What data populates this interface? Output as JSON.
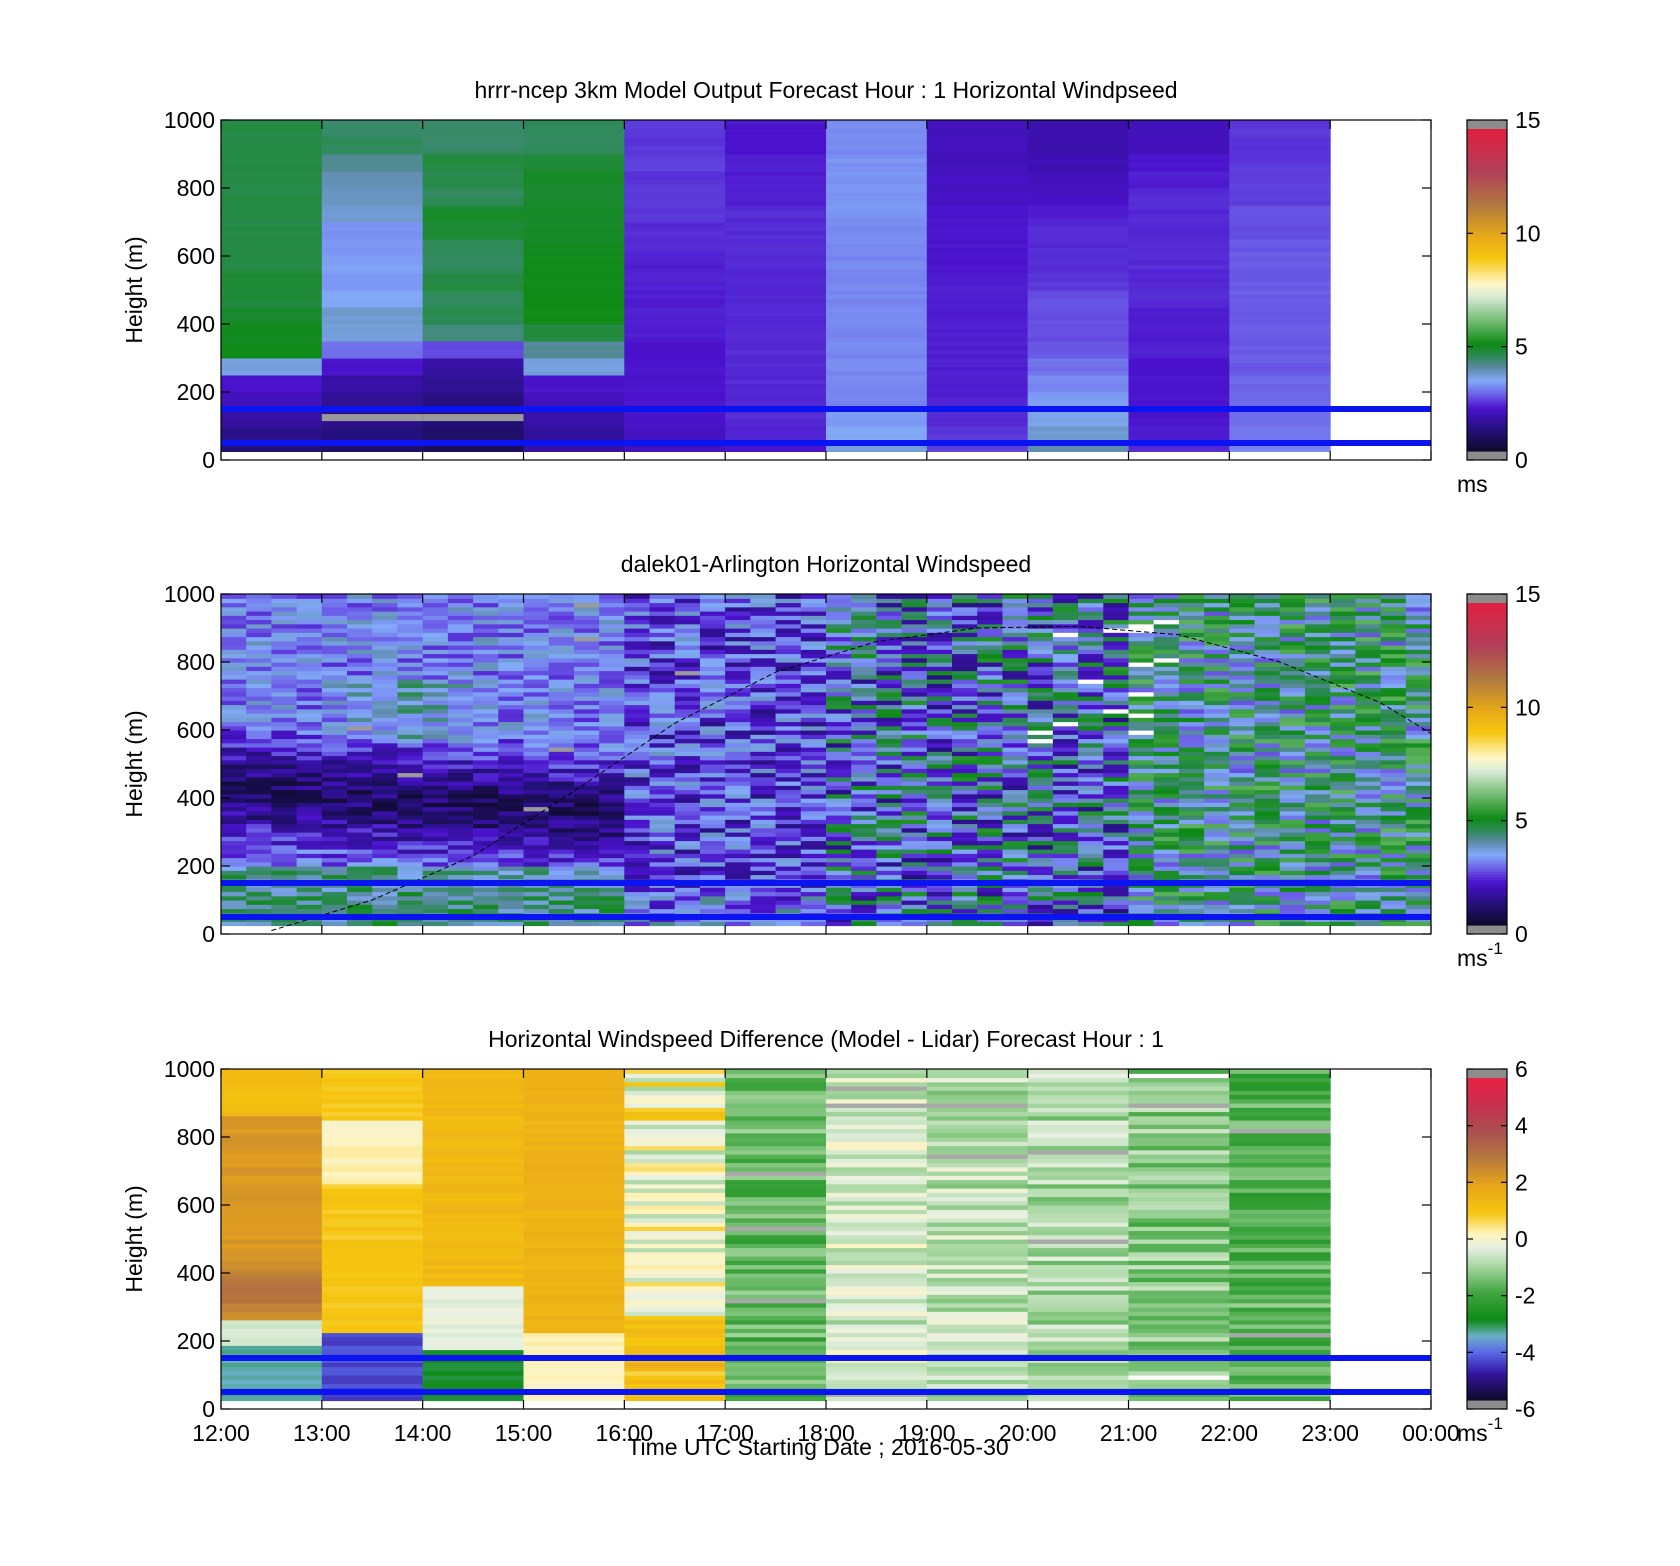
{
  "figure": {
    "xlabel": "Time UTC  Starting Date ; 2016-05-30"
  },
  "chart_data": [
    {
      "type": "heatmap",
      "title": "hrrr-ncep 3km Model Output   Forecast Hour : 1 Horizontal Windpseed",
      "ylabel": "Height (m)",
      "xlim": [
        "12:00",
        "00:00"
      ],
      "ylim": [
        0,
        1000
      ],
      "yticks": [
        0,
        200,
        400,
        600,
        800,
        1000
      ],
      "colorbar": {
        "ticks": [
          0,
          5,
          10,
          15
        ],
        "range": [
          0,
          15
        ],
        "unit": "ms"
      },
      "time_columns": [
        "12:00",
        "13:00",
        "14:00",
        "15:00",
        "16:00",
        "17:00",
        "18:00",
        "19:00",
        "20:00",
        "21:00",
        "22:00"
      ],
      "data_end_time": "23:00",
      "height_levels": [
        30,
        75,
        125,
        175,
        225,
        275,
        325,
        375,
        425,
        475,
        525,
        575,
        625,
        675,
        725,
        775,
        825,
        875,
        925,
        975
      ],
      "windspeed_grid": [
        [
          1.0,
          0.8,
          0.6,
          1.5,
          1.8,
          2.0,
          3.5,
          2.4,
          3.8,
          2.2,
          3.0
        ],
        [
          1.2,
          1.0,
          0.8,
          1.4,
          1.9,
          2.1,
          3.3,
          2.3,
          3.6,
          2.1,
          2.9
        ],
        [
          1.5,
          1.2,
          1.0,
          1.6,
          2.0,
          2.2,
          3.2,
          2.2,
          3.4,
          2.0,
          2.8
        ],
        [
          1.8,
          1.3,
          1.1,
          1.8,
          2.0,
          2.2,
          3.0,
          2.1,
          3.2,
          2.0,
          2.7
        ],
        [
          2.0,
          1.5,
          1.3,
          2.0,
          2.0,
          2.2,
          3.0,
          2.1,
          3.0,
          2.0,
          2.7
        ],
        [
          3.5,
          2.0,
          1.5,
          3.5,
          2.0,
          2.2,
          3.0,
          2.1,
          2.8,
          2.0,
          2.6
        ],
        [
          5.0,
          2.8,
          2.5,
          4.0,
          2.0,
          2.2,
          3.0,
          2.1,
          2.6,
          2.1,
          2.6
        ],
        [
          4.9,
          3.5,
          4.2,
          4.6,
          2.1,
          2.2,
          3.0,
          2.1,
          2.5,
          2.1,
          2.6
        ],
        [
          4.8,
          3.6,
          4.5,
          5.0,
          2.1,
          2.2,
          3.0,
          2.1,
          2.5,
          2.1,
          2.6
        ],
        [
          4.7,
          3.3,
          4.4,
          5.0,
          2.1,
          2.2,
          3.0,
          2.1,
          2.5,
          2.2,
          2.6
        ],
        [
          4.7,
          3.2,
          4.6,
          5.0,
          2.1,
          2.2,
          3.0,
          2.1,
          2.3,
          2.2,
          2.6
        ],
        [
          4.6,
          3.2,
          4.4,
          5.0,
          2.1,
          2.2,
          3.0,
          2.0,
          2.2,
          2.2,
          2.6
        ],
        [
          4.6,
          3.1,
          4.4,
          4.9,
          2.2,
          2.2,
          3.0,
          2.0,
          2.2,
          2.2,
          2.6
        ],
        [
          4.6,
          3.1,
          4.7,
          4.8,
          2.2,
          2.2,
          3.0,
          2.0,
          2.2,
          2.2,
          2.5
        ],
        [
          4.6,
          3.6,
          4.8,
          4.8,
          2.3,
          2.2,
          3.1,
          2.0,
          2.1,
          2.2,
          2.5
        ],
        [
          4.6,
          3.7,
          4.4,
          4.8,
          2.3,
          2.1,
          3.1,
          1.9,
          1.9,
          2.2,
          2.4
        ],
        [
          4.6,
          3.8,
          4.5,
          4.8,
          2.3,
          2.1,
          3.1,
          1.9,
          1.8,
          2.1,
          2.4
        ],
        [
          4.6,
          4.0,
          4.6,
          4.7,
          2.4,
          2.1,
          3.1,
          1.8,
          1.7,
          2.0,
          2.3
        ],
        [
          4.6,
          4.4,
          4.3,
          4.4,
          2.3,
          2.0,
          3.0,
          1.8,
          1.6,
          1.8,
          2.3
        ],
        [
          4.6,
          4.3,
          4.3,
          4.4,
          2.3,
          2.0,
          3.0,
          1.8,
          1.6,
          1.8,
          2.3
        ]
      ],
      "reference_lines_m": [
        50,
        150
      ]
    },
    {
      "type": "heatmap",
      "title": "dalek01-Arlington  Horizontal Windspeed",
      "ylabel": "Height (m)",
      "xlim": [
        "12:00",
        "00:00"
      ],
      "ylim": [
        0,
        1000
      ],
      "yticks": [
        0,
        200,
        400,
        600,
        800,
        1000
      ],
      "colorbar": {
        "ticks": [
          0,
          5,
          10,
          15
        ],
        "range": [
          0,
          15
        ],
        "unit": "ms",
        "unit_exponent": "-1"
      },
      "data_end_time": "23:55",
      "reference_lines_m": [
        50,
        150
      ],
      "boundary_layer_curve_m": [
        [
          "12:30",
          10
        ],
        [
          "13:30",
          100
        ],
        [
          "14:30",
          230
        ],
        [
          "15:30",
          420
        ],
        [
          "16:30",
          620
        ],
        [
          "17:30",
          770
        ],
        [
          "18:30",
          860
        ],
        [
          "19:30",
          900
        ],
        [
          "20:30",
          905
        ],
        [
          "21:30",
          880
        ],
        [
          "22:30",
          800
        ],
        [
          "23:30",
          680
        ],
        [
          "00:00",
          590
        ]
      ]
    },
    {
      "type": "heatmap",
      "title": "Horizontal Windspeed Difference (Model - Lidar) Forecast Hour : 1",
      "ylabel": "Height (m)",
      "xlim": [
        "12:00",
        "00:00"
      ],
      "ylim": [
        0,
        1000
      ],
      "yticks": [
        0,
        200,
        400,
        600,
        800,
        1000
      ],
      "xticks": [
        "12:00",
        "13:00",
        "14:00",
        "15:00",
        "16:00",
        "17:00",
        "18:00",
        "19:00",
        "20:00",
        "21:00",
        "22:00",
        "23:00",
        "00:00"
      ],
      "colorbar": {
        "ticks": [
          -6,
          -4,
          -2,
          0,
          2,
          4,
          6
        ],
        "range": [
          -6,
          6
        ],
        "unit": "ms",
        "unit_exponent": "-1"
      },
      "data_end_time": "23:00",
      "reference_lines_m": [
        50,
        150
      ],
      "column_mean_difference": [
        2.5,
        1.0,
        1.3,
        1.6,
        0.0,
        -1.7,
        -0.5,
        -0.8,
        -0.9,
        -1.3,
        -1.8
      ]
    }
  ]
}
